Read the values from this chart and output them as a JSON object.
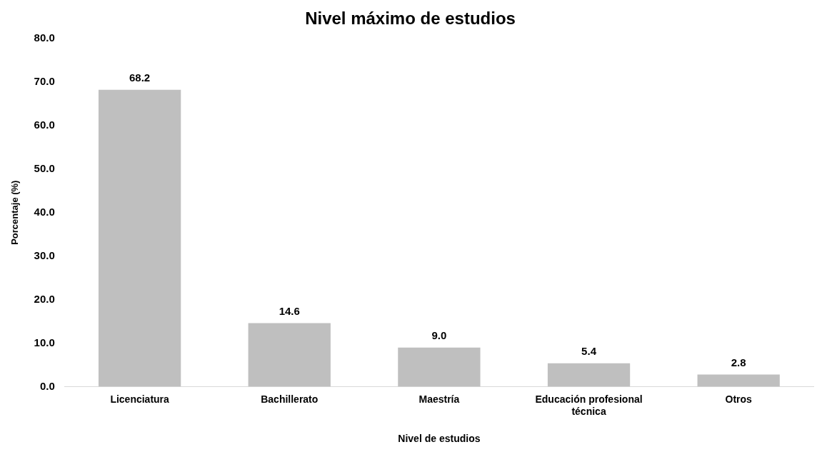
{
  "chart_data": {
    "type": "bar",
    "title": "Nivel máximo de estudios",
    "xlabel": "Nivel de estudios",
    "ylabel": "Porcentaje (%)",
    "categories": [
      "Licenciatura",
      "Bachillerato",
      "Maestría",
      "Educación profesional técnica",
      "Otros"
    ],
    "values": [
      68.2,
      14.6,
      9.0,
      5.4,
      2.8
    ],
    "value_labels": [
      "68.2",
      "14.6",
      "9.0",
      "5.4",
      "2.8"
    ],
    "color": "#bfbfbf",
    "ylim": [
      0,
      80
    ],
    "yticks": [
      {
        "value": 0,
        "label": "0.0"
      },
      {
        "value": 10,
        "label": "10.0"
      },
      {
        "value": 20,
        "label": "20.0"
      },
      {
        "value": 30,
        "label": "30.0"
      },
      {
        "value": 40,
        "label": "40.0"
      },
      {
        "value": 50,
        "label": "50.0"
      },
      {
        "value": 60,
        "label": "60.0"
      },
      {
        "value": 70,
        "label": "70.0"
      },
      {
        "value": 80,
        "label": "80.0"
      }
    ],
    "grid": false,
    "legend": false
  }
}
